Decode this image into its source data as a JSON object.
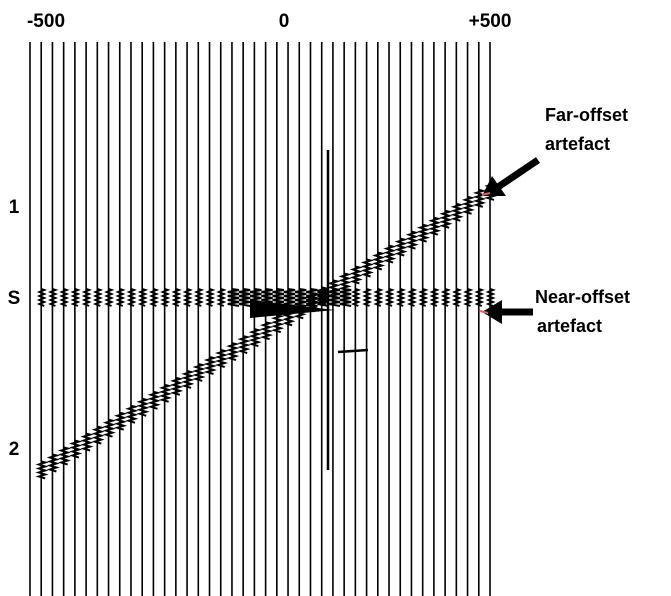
{
  "axis": {
    "top_labels": [
      "-500",
      "0",
      "+500"
    ],
    "left_labels": [
      "1",
      "S",
      "2"
    ]
  },
  "annotations": [
    {
      "lines": [
        "Far-offset",
        "artefact"
      ]
    },
    {
      "lines": [
        "Near-offset",
        "artefact"
      ]
    }
  ]
}
